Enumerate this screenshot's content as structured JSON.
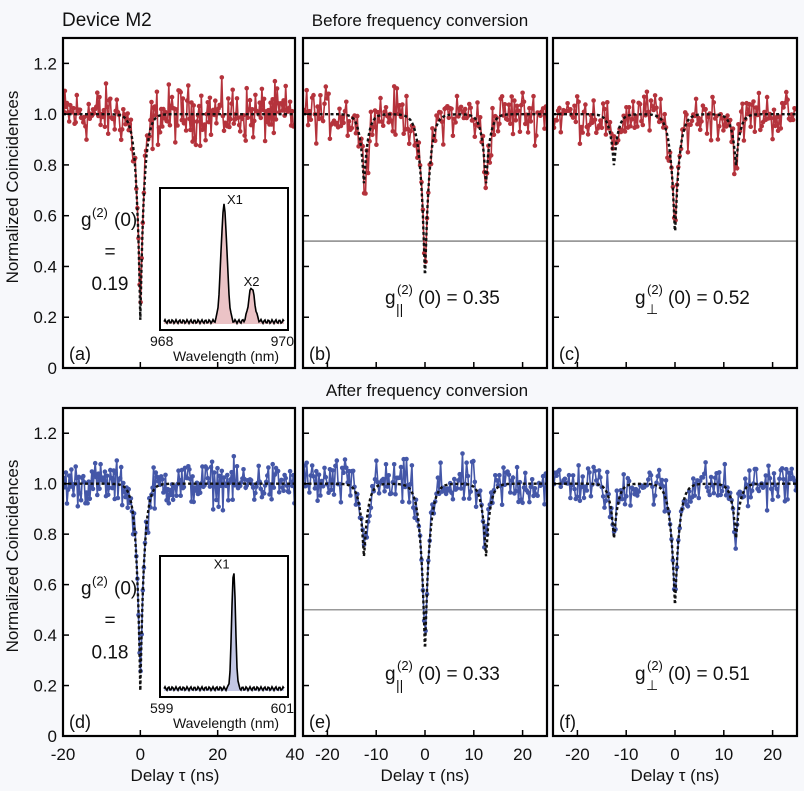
{
  "figure": {
    "title": "Device M2",
    "before_label": "Before frequency conversion",
    "after_label": "After frequency conversion",
    "ylabel": "Normalized Coincidences",
    "xlabel": "Delay τ (ns)"
  },
  "colors": {
    "before": "#b5333c",
    "after": "#4457a8",
    "fit": "#111111",
    "inset_fill_before": "#e7b8bc",
    "inset_fill_after": "#b8bde0"
  },
  "chart_data": [
    {
      "id": "a",
      "type": "line",
      "row": "before",
      "panel_label": "(a)",
      "xlim": [
        -20,
        40
      ],
      "ylim": [
        0,
        1.3
      ],
      "xticks": [
        -20,
        0,
        20,
        40
      ],
      "yticks": [
        0,
        0.2,
        0.4,
        0.6,
        0.8,
        1.0,
        1.2
      ],
      "g2_text": {
        "line1": "g",
        "sup": "(2)",
        "line1b": "(0)",
        "line2": "=",
        "line3": "0.19"
      },
      "g2_value": 0.19,
      "side_dips": [],
      "side_depth": 0,
      "noise": 0.09,
      "threshold": null,
      "inset": {
        "x_ticks": [
          "968",
          "970"
        ],
        "xlabel": "Wavelength (nm)",
        "peaks": [
          "X1",
          "X2"
        ]
      }
    },
    {
      "id": "b",
      "type": "line",
      "row": "before",
      "panel_label": "(b)",
      "xlim": [
        -25,
        25
      ],
      "ylim": [
        0,
        1.3
      ],
      "xticks": [
        -20,
        -10,
        0,
        10,
        20
      ],
      "g2_text": {
        "pre": "g",
        "sup": "(2)",
        "sub": "||",
        "post": "(0) = 0.35"
      },
      "g2_value": 0.35,
      "side_dips": [
        -12.5,
        12.5
      ],
      "side_depth": 0.78,
      "noise": 0.08,
      "threshold": 0.5
    },
    {
      "id": "c",
      "type": "line",
      "row": "before",
      "panel_label": "(c)",
      "xlim": [
        -25,
        25
      ],
      "ylim": [
        0,
        1.3
      ],
      "xticks": [
        -20,
        -10,
        0,
        10,
        20
      ],
      "g2_text": {
        "pre": "g",
        "sup": "(2)",
        "sub": "⊥",
        "post": "(0) = 0.52"
      },
      "g2_value": 0.52,
      "side_dips": [
        -12.5,
        12.5
      ],
      "side_depth": 0.78,
      "noise": 0.08,
      "threshold": 0.5
    },
    {
      "id": "d",
      "type": "line",
      "row": "after",
      "panel_label": "(d)",
      "xlim": [
        -20,
        40
      ],
      "ylim": [
        0,
        1.3
      ],
      "xticks": [
        -20,
        0,
        20,
        40
      ],
      "yticks": [
        0,
        0.2,
        0.4,
        0.6,
        0.8,
        1.0,
        1.2
      ],
      "g2_text": {
        "line1": "g",
        "sup": "(2)",
        "line1b": "(0)",
        "line2": "=",
        "line3": "0.18"
      },
      "g2_value": 0.18,
      "side_dips": [],
      "side_depth": 0,
      "noise": 0.07,
      "threshold": null,
      "inset": {
        "x_ticks": [
          "599",
          "601"
        ],
        "xlabel": "Wavelength (nm)",
        "peaks": [
          "X1"
        ]
      }
    },
    {
      "id": "e",
      "type": "line",
      "row": "after",
      "panel_label": "(e)",
      "xlim": [
        -25,
        25
      ],
      "ylim": [
        0,
        1.3
      ],
      "xticks": [
        -20,
        -10,
        0,
        10,
        20
      ],
      "g2_text": {
        "pre": "g",
        "sup": "(2)",
        "sub": "||",
        "post": "(0) = 0.33"
      },
      "g2_value": 0.33,
      "side_dips": [
        -12.5,
        12.5
      ],
      "side_depth": 0.8,
      "noise": 0.08,
      "threshold": 0.5
    },
    {
      "id": "f",
      "type": "line",
      "row": "after",
      "panel_label": "(f)",
      "xlim": [
        -25,
        25
      ],
      "ylim": [
        0,
        1.3
      ],
      "xticks": [
        -20,
        -10,
        0,
        10,
        20
      ],
      "g2_text": {
        "pre": "g",
        "sup": "(2)",
        "sub": "⊥",
        "post": "(0) = 0.51"
      },
      "g2_value": 0.51,
      "side_dips": [
        -12.5,
        12.5
      ],
      "side_depth": 0.82,
      "noise": 0.07,
      "threshold": 0.5
    }
  ]
}
